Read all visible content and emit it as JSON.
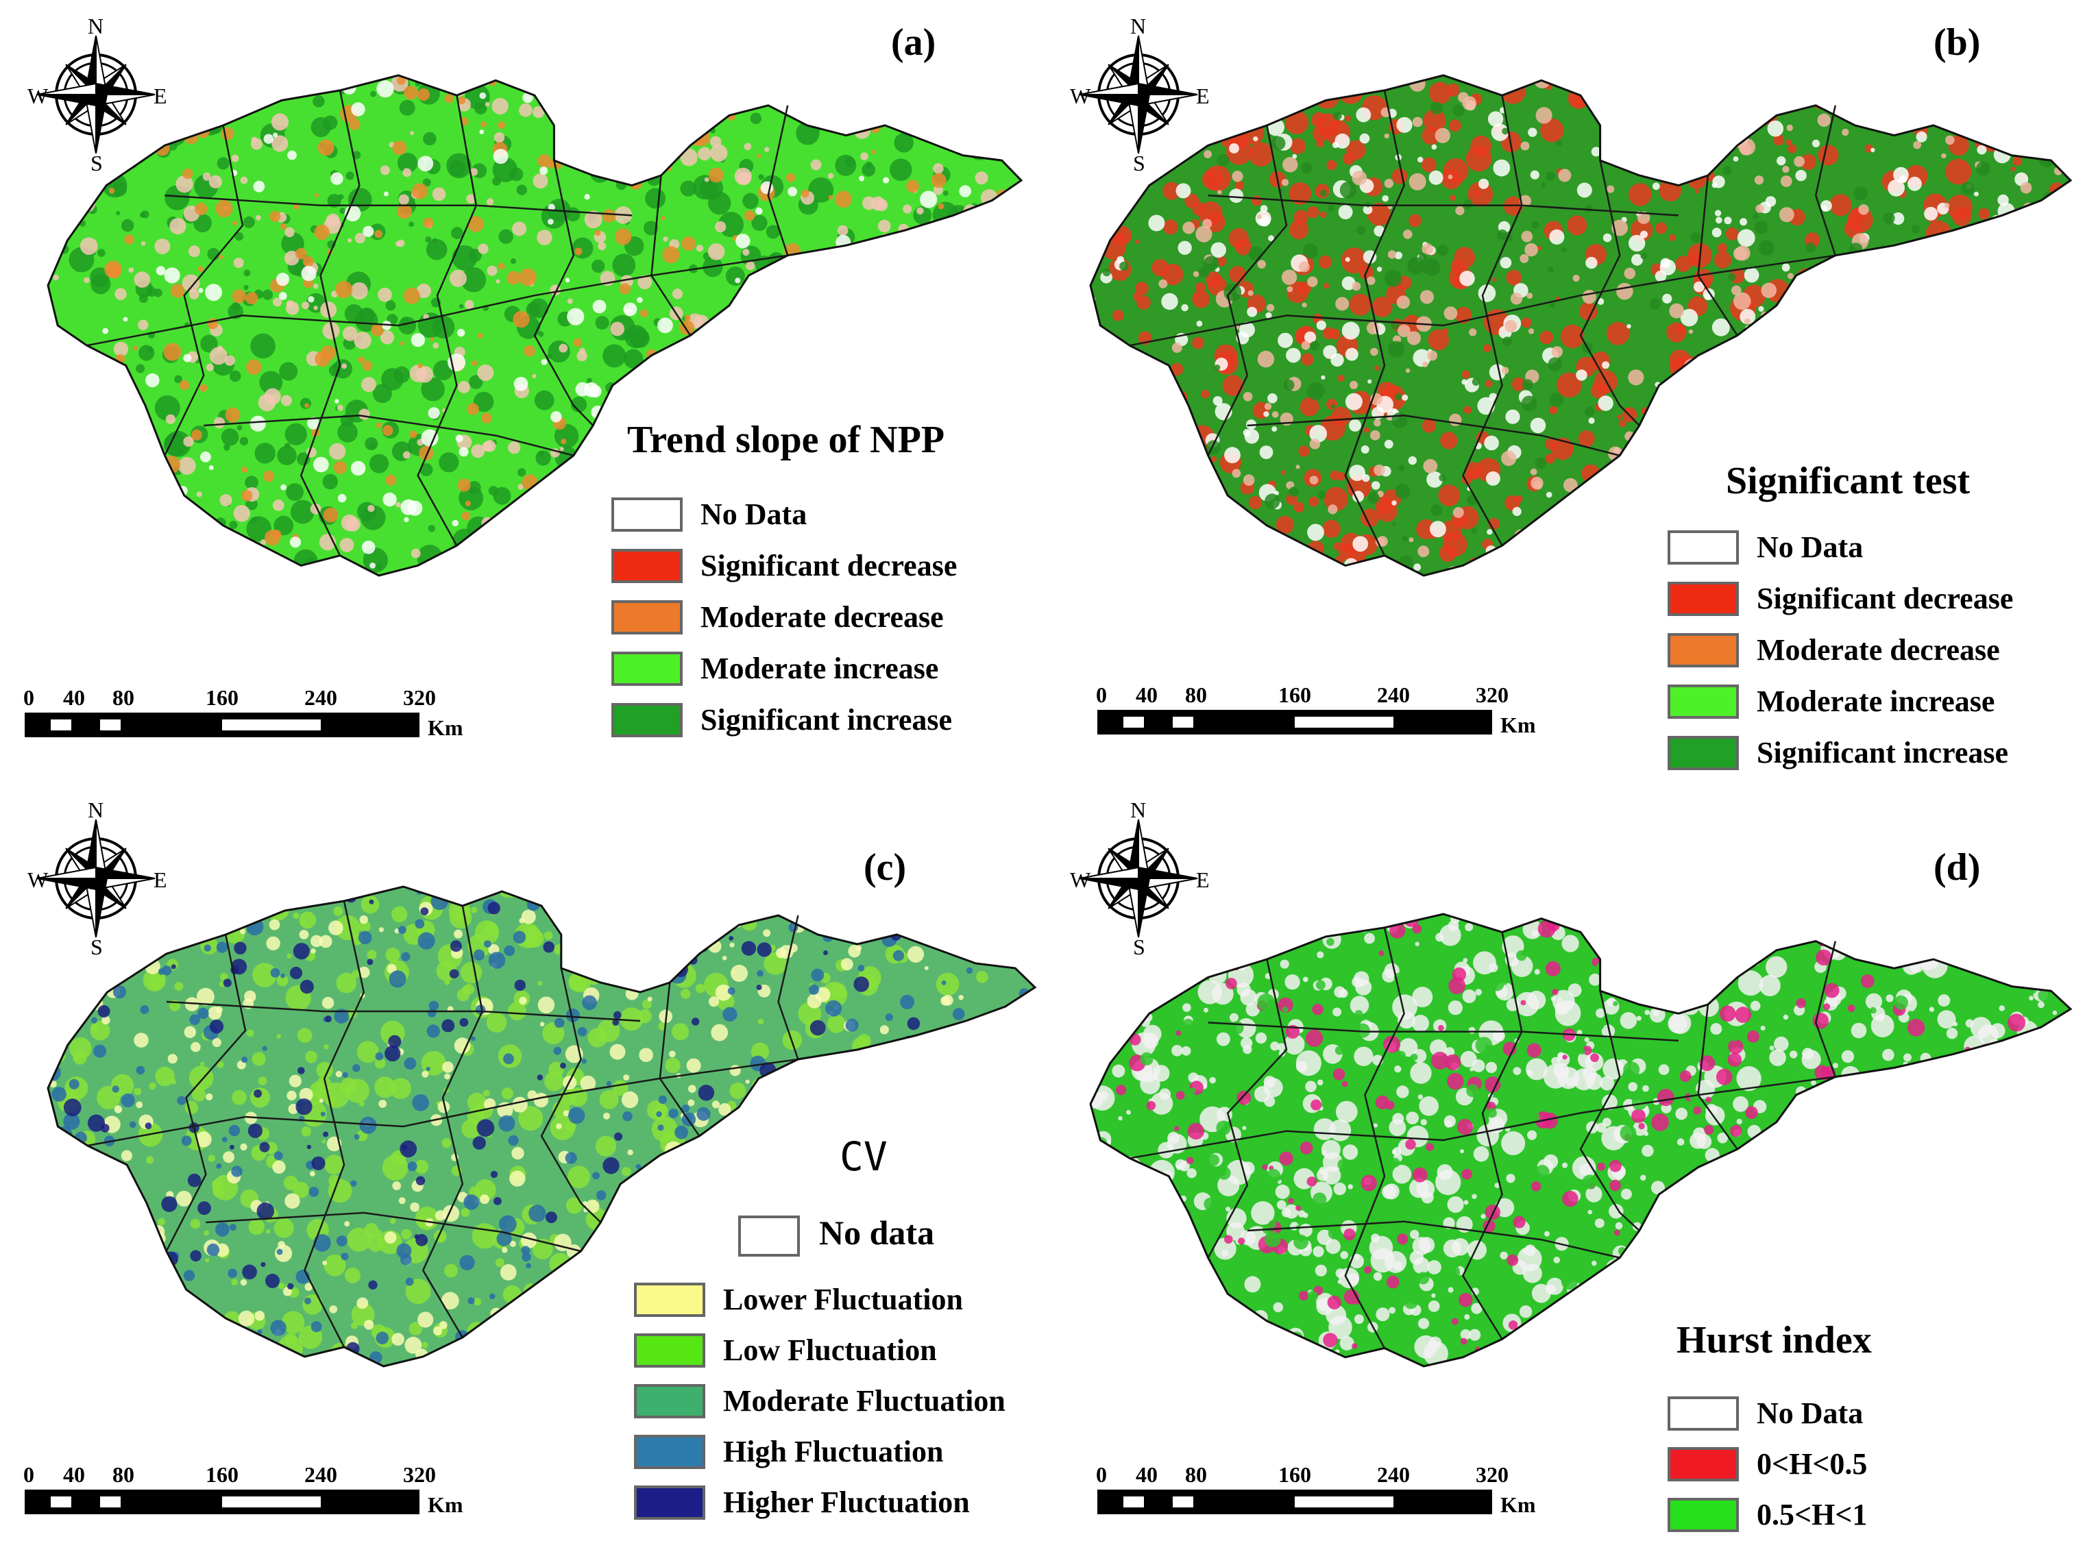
{
  "compass_labels": {
    "n": "N",
    "s": "S",
    "w": "W",
    "e": "E"
  },
  "scale": {
    "ticks": [
      "0",
      "40",
      "80",
      "160",
      "240",
      "320"
    ],
    "unit": "Km"
  },
  "panels": [
    {
      "id": "a",
      "letter": "(a)",
      "legend_title": "Trend  slope of NPP",
      "legend": [
        {
          "label": "No Data",
          "color": "#ffffff"
        },
        {
          "label": "Significant decrease",
          "color": "#ee2a12"
        },
        {
          "label": "Moderate decrease",
          "color": "#ec7a2a"
        },
        {
          "label": "Moderate increase",
          "color": "#4ef028"
        },
        {
          "label": "Significant increase",
          "color": "#20a024"
        }
      ],
      "map_base": "#48e030",
      "map_patches": [
        "#1e9a22",
        "#f3c7b5",
        "#ec8a30",
        "#ffffff"
      ]
    },
    {
      "id": "b",
      "letter": "(b)",
      "legend_title": "Significant test",
      "legend": [
        {
          "label": "No Data",
          "color": "#ffffff"
        },
        {
          "label": "Significant decrease",
          "color": "#ee2a12"
        },
        {
          "label": "Moderate decrease",
          "color": "#ec7a2a"
        },
        {
          "label": "Moderate increase",
          "color": "#4ef028"
        },
        {
          "label": "Significant increase",
          "color": "#20a024"
        }
      ],
      "map_base": "#2f9a26",
      "map_patches": [
        "#e83a20",
        "#ffffff",
        "#f2b6a2",
        "#268a20"
      ]
    },
    {
      "id": "c",
      "letter": "(c)",
      "legend_title": "CV",
      "legend": [
        {
          "label": "No data",
          "color": "#ffffff"
        },
        {
          "label": "Lower Fluctuation",
          "color": "#fafa8a"
        },
        {
          "label": "Low Fluctuation",
          "color": "#56e614"
        },
        {
          "label": "Moderate Fluctuation",
          "color": "#3cb06c"
        },
        {
          "label": "High Fluctuation",
          "color": "#2e7cae"
        },
        {
          "label": "Higher Fluctuation",
          "color": "#1a1e86"
        }
      ],
      "map_base": "#5ab86e",
      "map_patches": [
        "#8ae03a",
        "#fafab4",
        "#2a6ca8",
        "#1a2080"
      ]
    },
    {
      "id": "d",
      "letter": "(d)",
      "legend_title": "Hurst index",
      "legend": [
        {
          "label": "No Data",
          "color": "#ffffff"
        },
        {
          "label": "0<H<0.5",
          "color": "#f01a24"
        },
        {
          "label": "0.5<H<1",
          "color": "#26e01c"
        }
      ],
      "map_base": "#2ec42a",
      "map_patches": [
        "#f2f2f2",
        "#f2f2f2",
        "#e6208a",
        "#2ec42a"
      ]
    }
  ]
}
